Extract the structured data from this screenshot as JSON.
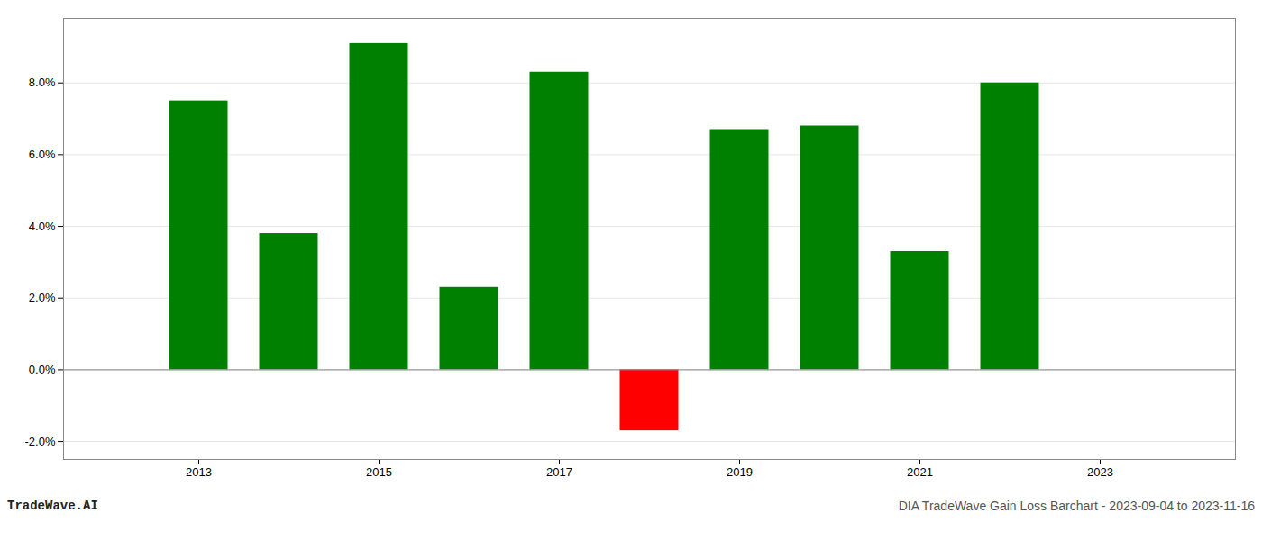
{
  "chart_data": {
    "type": "bar",
    "x": [
      2013,
      2014,
      2015,
      2016,
      2017,
      2018,
      2019,
      2020,
      2021,
      2022
    ],
    "values": [
      0.075,
      0.038,
      0.091,
      0.023,
      0.083,
      -0.017,
      0.067,
      0.068,
      0.033,
      0.08
    ],
    "colors": [
      "#008000",
      "#008000",
      "#008000",
      "#008000",
      "#008000",
      "#ff0000",
      "#008000",
      "#008000",
      "#008000",
      "#008000"
    ],
    "xlim": [
      2011.5,
      2024.5
    ],
    "xticks": [
      2013,
      2015,
      2017,
      2019,
      2021,
      2023
    ],
    "ylim": [
      -0.025,
      0.098
    ],
    "yticks": [
      {
        "value": -0.02,
        "label": "-2.0%"
      },
      {
        "value": 0.0,
        "label": "0.0%"
      },
      {
        "value": 0.02,
        "label": "2.0%"
      },
      {
        "value": 0.04,
        "label": "4.0%"
      },
      {
        "value": 0.06,
        "label": "6.0%"
      },
      {
        "value": 0.08,
        "label": "8.0%"
      }
    ],
    "grid": true,
    "annotations": [
      "TradeWave.AI",
      "DIA TradeWave Gain Loss Barchart - 2023-09-04 to 2023-11-16"
    ]
  }
}
